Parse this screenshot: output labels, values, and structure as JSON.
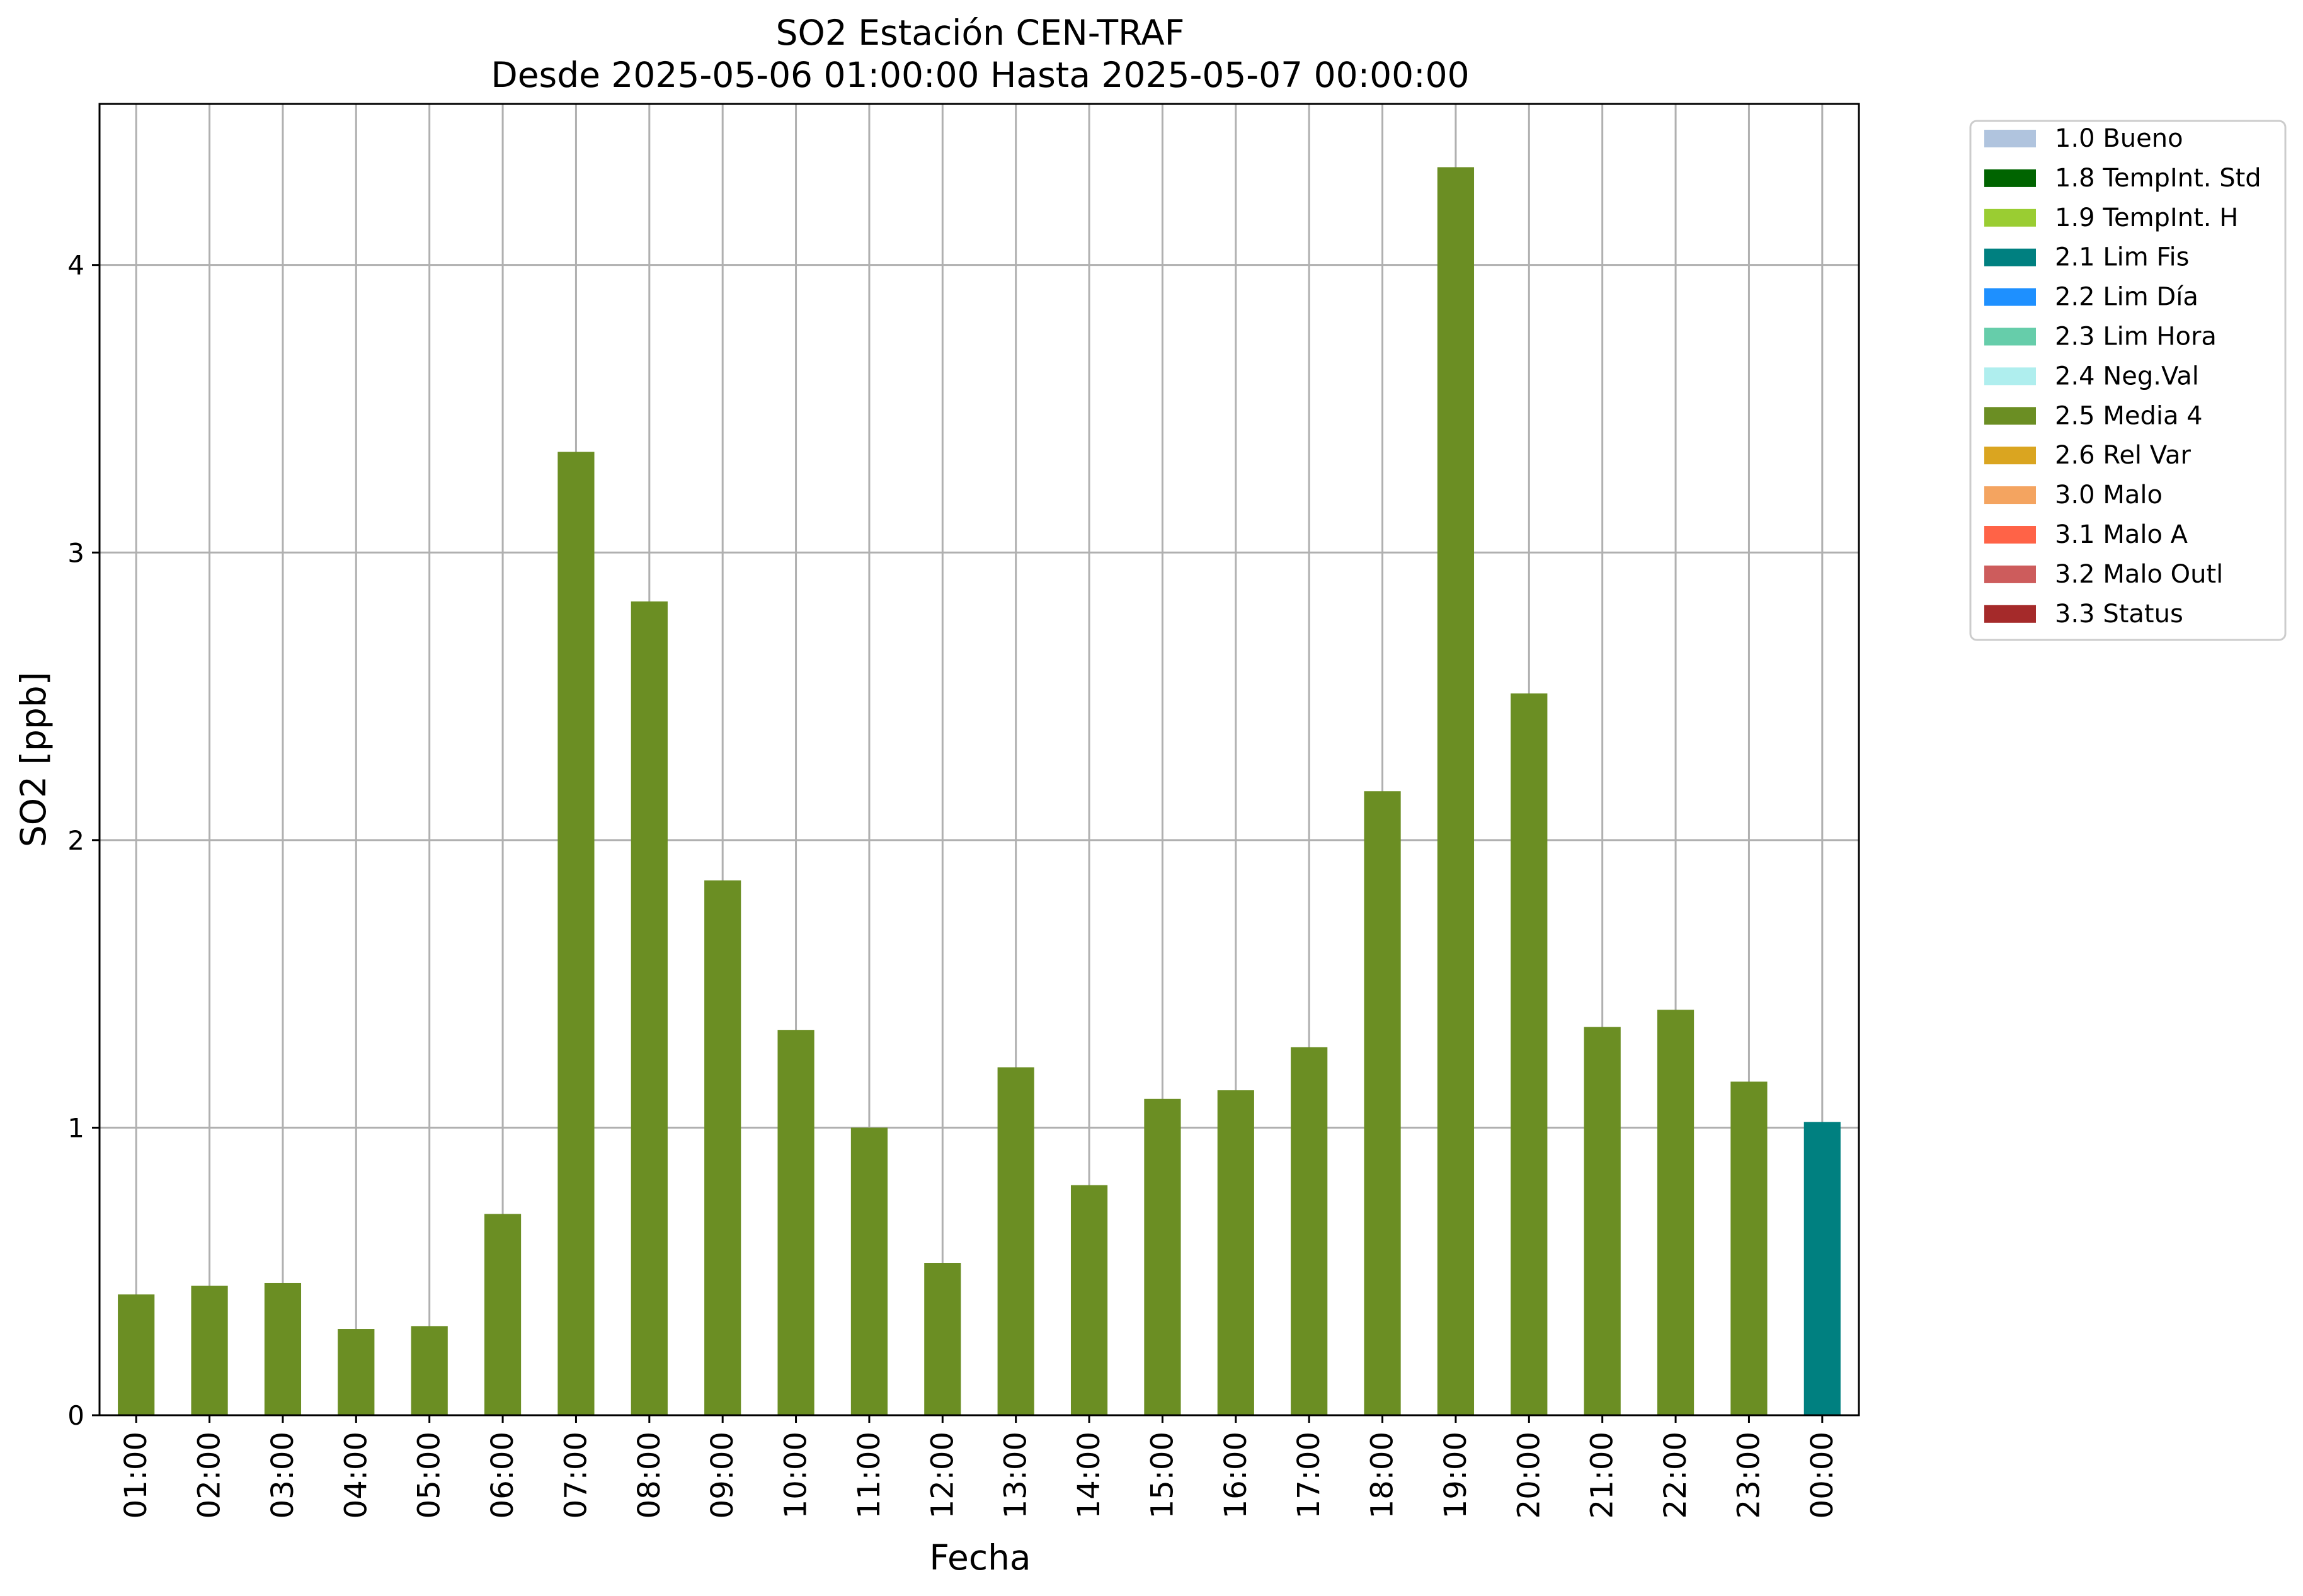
{
  "chart_data": {
    "type": "bar",
    "title": "SO2 Estación CEN-TRAF",
    "subtitle": "Desde 2025-05-06 01:00:00 Hasta 2025-05-07 00:00:00",
    "xlabel": "Fecha",
    "ylabel": "SO2 [ppb]",
    "ylim": [
      0,
      4.56
    ],
    "yticks": [
      "0",
      "1",
      "2",
      "3",
      "4"
    ],
    "grid": true,
    "legend_position": "outside-top-right",
    "categories": [
      "01:00",
      "02:00",
      "03:00",
      "04:00",
      "05:00",
      "06:00",
      "07:00",
      "08:00",
      "09:00",
      "10:00",
      "11:00",
      "12:00",
      "13:00",
      "14:00",
      "15:00",
      "16:00",
      "17:00",
      "18:00",
      "19:00",
      "20:00",
      "21:00",
      "22:00",
      "23:00",
      "00:00"
    ],
    "values": [
      0.42,
      0.45,
      0.46,
      0.3,
      0.31,
      0.7,
      3.35,
      2.83,
      1.86,
      1.34,
      1.0,
      0.53,
      1.21,
      0.8,
      1.1,
      1.13,
      1.28,
      2.17,
      4.34,
      2.51,
      1.35,
      1.41,
      1.16,
      1.02
    ],
    "value_flags": [
      "2.5",
      "2.5",
      "2.5",
      "2.5",
      "2.5",
      "2.5",
      "2.5",
      "2.5",
      "2.5",
      "2.5",
      "2.5",
      "2.5",
      "2.5",
      "2.5",
      "2.5",
      "2.5",
      "2.5",
      "2.5",
      "2.5",
      "2.5",
      "2.5",
      "2.5",
      "2.5",
      "2.1"
    ],
    "legend": [
      {
        "code": "1.0",
        "label": "1.0 Bueno",
        "color": "#b0c4de"
      },
      {
        "code": "1.8",
        "label": "1.8 TempInt. Std",
        "color": "#006400"
      },
      {
        "code": "1.9",
        "label": "1.9 TempInt. H",
        "color": "#9acd32"
      },
      {
        "code": "2.1",
        "label": "2.1 Lim Fis",
        "color": "#008080"
      },
      {
        "code": "2.2",
        "label": "2.2 Lim Día",
        "color": "#1e90ff"
      },
      {
        "code": "2.3",
        "label": "2.3 Lim Hora",
        "color": "#66cdaa"
      },
      {
        "code": "2.4",
        "label": "2.4 Neg.Val",
        "color": "#afeeee"
      },
      {
        "code": "2.5",
        "label": "2.5 Media 4",
        "color": "#6b8e23"
      },
      {
        "code": "2.6",
        "label": "2.6 Rel Var",
        "color": "#daa520"
      },
      {
        "code": "3.0",
        "label": "3.0 Malo",
        "color": "#f4a460"
      },
      {
        "code": "3.1",
        "label": "3.1 Malo A",
        "color": "#ff6347"
      },
      {
        "code": "3.2",
        "label": "3.2 Malo Outl",
        "color": "#cd5c5c"
      },
      {
        "code": "3.3",
        "label": "3.3 Status",
        "color": "#a52a2a"
      }
    ]
  }
}
